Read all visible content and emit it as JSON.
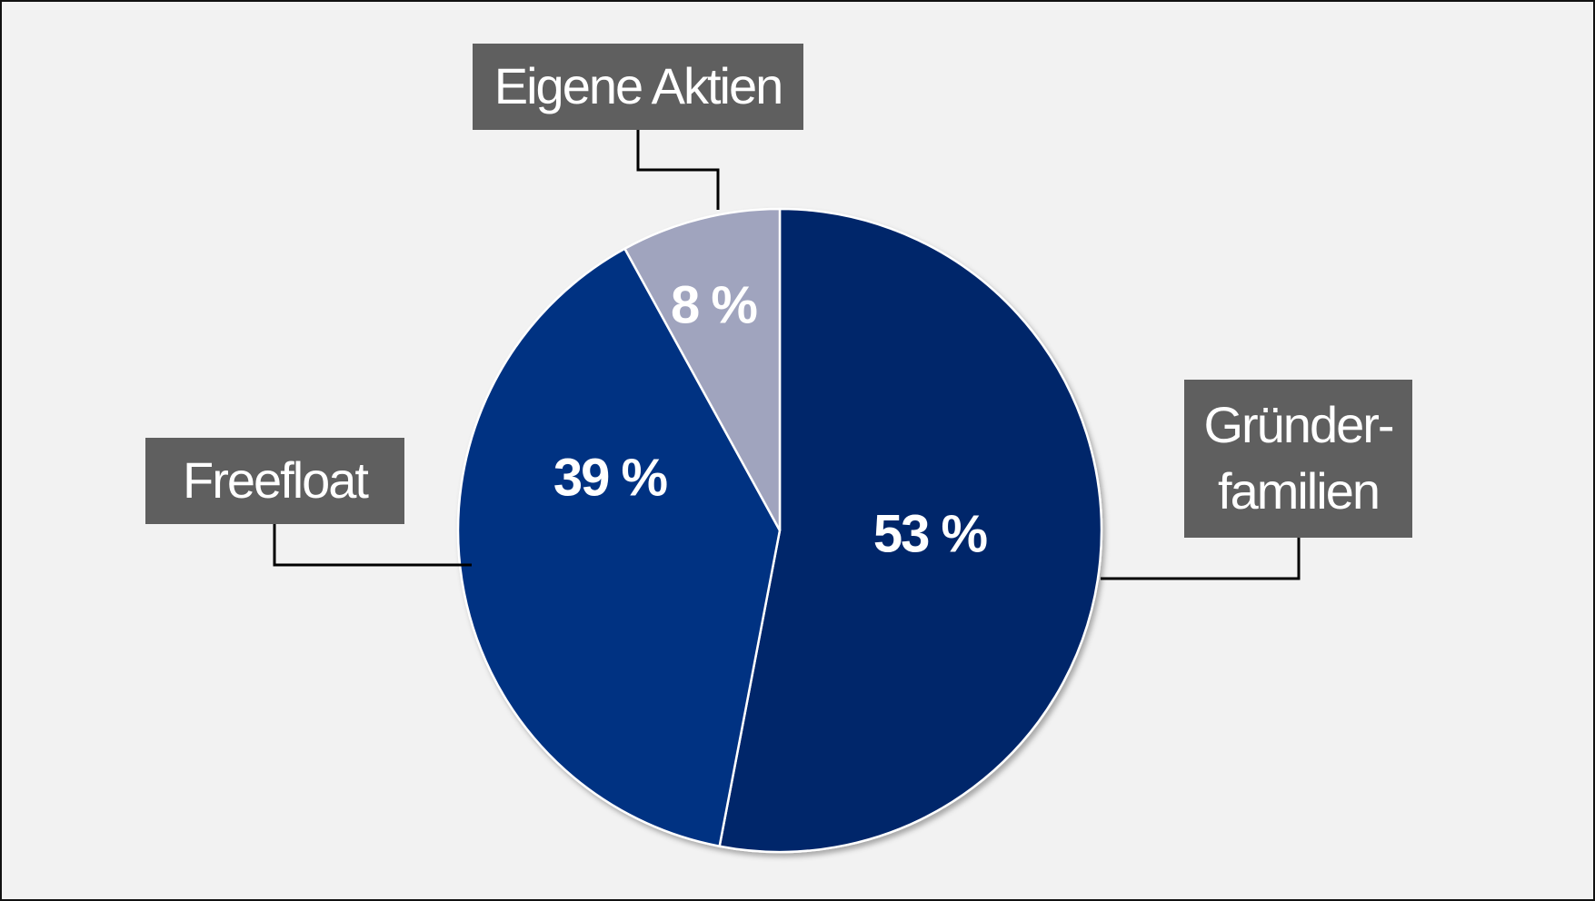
{
  "chart_data": {
    "type": "pie",
    "categories": [
      "Gründer-\nfamilien",
      "Freefloat",
      "Eigene Aktien"
    ],
    "values": [
      53,
      39,
      8
    ],
    "value_labels": [
      "53 %",
      "39 %",
      "8 %"
    ],
    "colors": [
      "#00266a",
      "#003282",
      "#a0a4be"
    ]
  }
}
